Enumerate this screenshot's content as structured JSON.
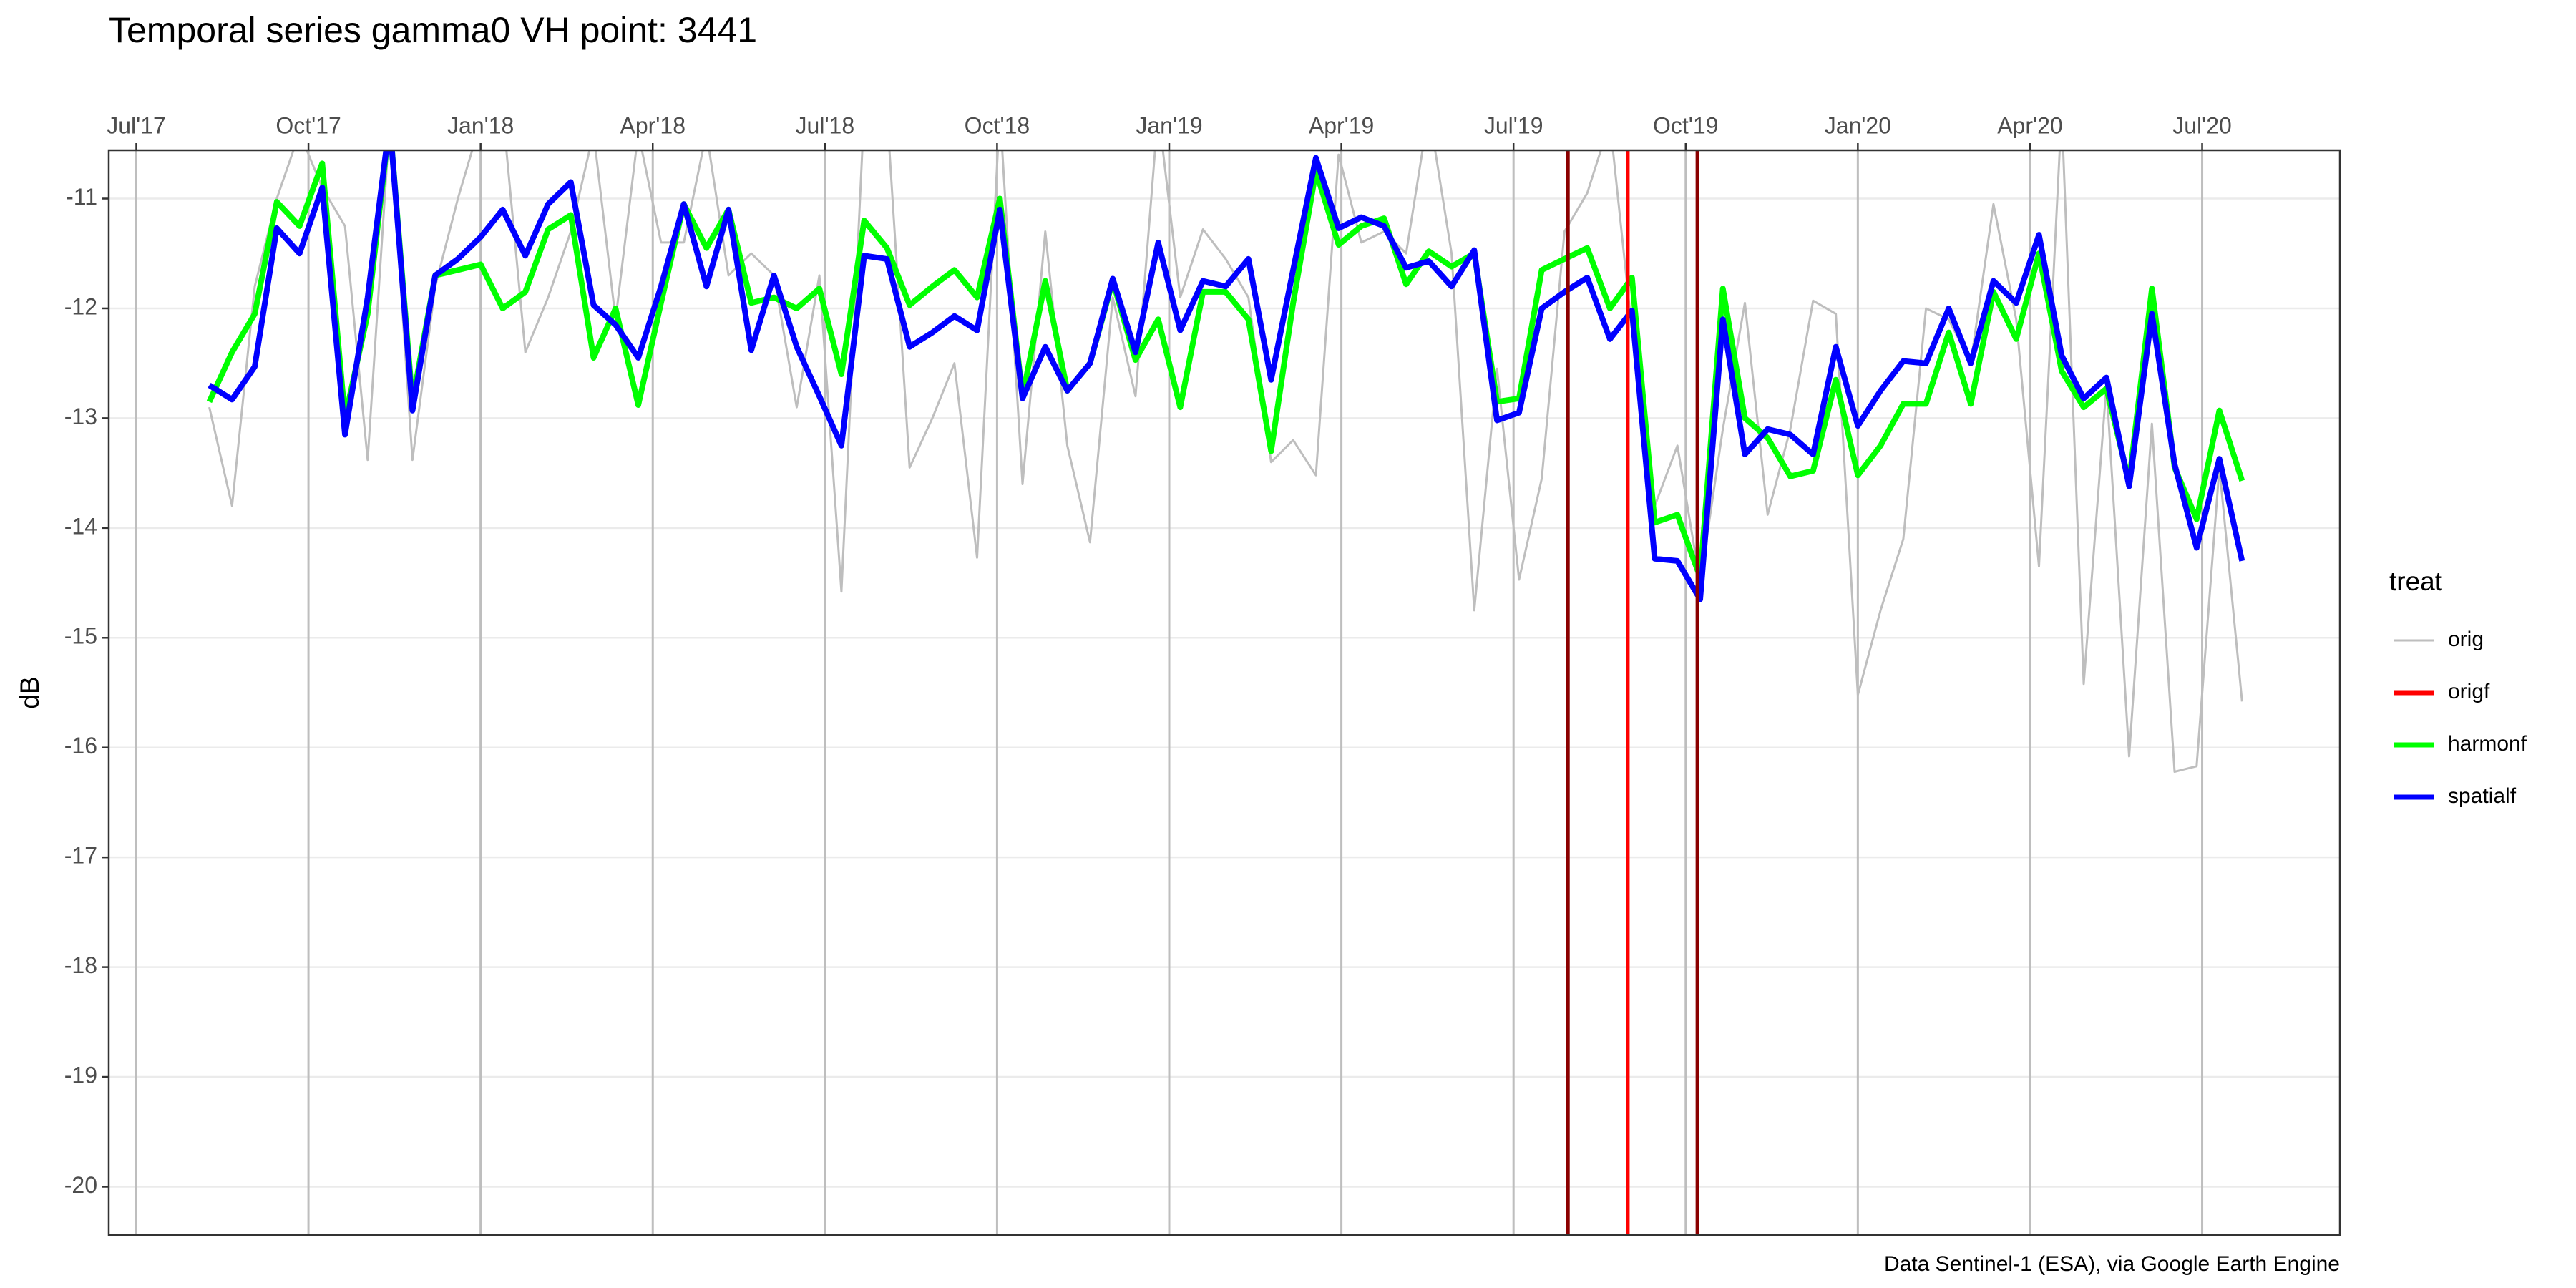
{
  "chart_data": {
    "type": "line",
    "title": "Temporal series gamma0 VH point: 3441",
    "y_label": "dB",
    "caption": "Data Sentinel-1 (ESA), via Google Earth Engine",
    "xlim": [
      2017.46,
      2020.7
    ],
    "xticks": [
      {
        "value": 2017.5,
        "label": "Jul'17"
      },
      {
        "value": 2017.75,
        "label": "Oct'17"
      },
      {
        "value": 2018.0,
        "label": "Jan'18"
      },
      {
        "value": 2018.25,
        "label": "Apr'18"
      },
      {
        "value": 2018.5,
        "label": "Jul'18"
      },
      {
        "value": 2018.75,
        "label": "Oct'18"
      },
      {
        "value": 2019.0,
        "label": "Jan'19"
      },
      {
        "value": 2019.25,
        "label": "Apr'19"
      },
      {
        "value": 2019.5,
        "label": "Jul'19"
      },
      {
        "value": 2019.75,
        "label": "Oct'19"
      },
      {
        "value": 2020.0,
        "label": "Jan'20"
      },
      {
        "value": 2020.25,
        "label": "Apr'20"
      },
      {
        "value": 2020.5,
        "label": "Jul'20"
      }
    ],
    "ylim": [
      -20.44,
      -10.56
    ],
    "yticks": [
      -20,
      -19,
      -18,
      -17,
      -16,
      -15,
      -14,
      -13,
      -12,
      -11
    ],
    "grid": true,
    "legend": {
      "title": "treat",
      "position": "right"
    },
    "x": [
      2017.606,
      2017.639,
      2017.672,
      2017.704,
      2017.737,
      2017.77,
      2017.803,
      2017.836,
      2017.868,
      2017.901,
      2017.934,
      2017.967,
      2018.0,
      2018.032,
      2018.065,
      2018.098,
      2018.131,
      2018.164,
      2018.196,
      2018.229,
      2018.262,
      2018.295,
      2018.328,
      2018.36,
      2018.393,
      2018.426,
      2018.459,
      2018.492,
      2018.524,
      2018.557,
      2018.59,
      2018.623,
      2018.656,
      2018.688,
      2018.721,
      2018.754,
      2018.787,
      2018.82,
      2018.852,
      2018.885,
      2018.918,
      2018.951,
      2018.984,
      2019.016,
      2019.049,
      2019.082,
      2019.115,
      2019.148,
      2019.18,
      2019.213,
      2019.246,
      2019.279,
      2019.312,
      2019.344,
      2019.377,
      2019.41,
      2019.443,
      2019.476,
      2019.508,
      2019.541,
      2019.574,
      2019.607,
      2019.64,
      2019.672,
      2019.705,
      2019.738,
      2019.771,
      2019.804,
      2019.836,
      2019.869,
      2019.902,
      2019.935,
      2019.968,
      2020.0,
      2020.033,
      2020.066,
      2020.099,
      2020.132,
      2020.164,
      2020.197,
      2020.23,
      2020.263,
      2020.296,
      2020.328,
      2020.361,
      2020.394,
      2020.427,
      2020.46,
      2020.492,
      2020.525,
      2020.558
    ],
    "series": [
      {
        "name": "orig",
        "color": "#bebebe",
        "values": [
          -12.9,
          -13.8,
          -11.8,
          -11.0,
          -10.4,
          -10.9,
          -11.25,
          -13.38,
          -10.3,
          -13.38,
          -11.8,
          -11.0,
          -10.3,
          -10.2,
          -12.4,
          -11.9,
          -11.3,
          -10.4,
          -12.1,
          -10.4,
          -11.4,
          -11.4,
          -10.4,
          -11.7,
          -11.5,
          -11.7,
          -12.9,
          -11.7,
          -14.58,
          -10.2,
          -10.2,
          -13.45,
          -13.0,
          -12.5,
          -14.27,
          -10.2,
          -13.6,
          -11.3,
          -13.25,
          -14.13,
          -11.9,
          -12.8,
          -10.2,
          -11.9,
          -11.28,
          -11.55,
          -11.9,
          -13.4,
          -13.2,
          -13.52,
          -10.6,
          -11.4,
          -11.3,
          -11.5,
          -10.2,
          -11.5,
          -14.75,
          -12.55,
          -14.47,
          -13.55,
          -11.3,
          -10.95,
          -10.3,
          -12.2,
          -13.8,
          -13.25,
          -14.5,
          -13.1,
          -11.95,
          -13.88,
          -13.1,
          -11.93,
          -12.05,
          -15.52,
          -14.75,
          -14.1,
          -12.0,
          -12.1,
          -12.5,
          -11.05,
          -12.1,
          -14.35,
          -10.2,
          -15.42,
          -12.7,
          -16.08,
          -13.05,
          -16.22,
          -16.17,
          -13.45,
          -15.58
        ]
      },
      {
        "name": "origf",
        "color": "#ff0000",
        "vline": 2019.666
      },
      {
        "name": "harmonf",
        "color": "#00ff00",
        "values": [
          -12.85,
          -12.4,
          -12.05,
          -11.03,
          -11.25,
          -10.68,
          -13.0,
          -12.05,
          -10.3,
          -12.85,
          -11.7,
          -11.65,
          -11.6,
          -12.0,
          -11.85,
          -11.28,
          -11.15,
          -12.45,
          -12.0,
          -12.88,
          -11.95,
          -11.05,
          -11.45,
          -11.1,
          -11.95,
          -11.9,
          -12.0,
          -11.82,
          -12.6,
          -11.2,
          -11.45,
          -11.97,
          -11.8,
          -11.65,
          -11.9,
          -11.0,
          -12.8,
          -11.75,
          -12.75,
          -12.5,
          -11.75,
          -12.47,
          -12.1,
          -12.9,
          -11.85,
          -11.85,
          -12.1,
          -13.3,
          -11.95,
          -10.75,
          -11.42,
          -11.25,
          -11.18,
          -11.78,
          -11.48,
          -11.62,
          -11.5,
          -12.85,
          -12.82,
          -11.65,
          -11.55,
          -11.45,
          -12.0,
          -11.72,
          -13.95,
          -13.88,
          -14.45,
          -11.82,
          -13.0,
          -13.18,
          -13.53,
          -13.48,
          -12.65,
          -13.52,
          -13.25,
          -12.87,
          -12.87,
          -12.22,
          -12.87,
          -11.85,
          -12.28,
          -11.5,
          -12.57,
          -12.9,
          -12.73,
          -13.58,
          -11.82,
          -13.45,
          -13.92,
          -12.93,
          -13.57
        ]
      },
      {
        "name": "spatialf",
        "color": "#0000ff",
        "values": [
          -12.7,
          -12.83,
          -12.53,
          -11.27,
          -11.5,
          -10.9,
          -13.15,
          -11.9,
          -10.3,
          -12.93,
          -11.7,
          -11.55,
          -11.35,
          -11.1,
          -11.52,
          -11.05,
          -10.85,
          -11.97,
          -12.15,
          -12.45,
          -11.8,
          -11.05,
          -11.8,
          -11.1,
          -12.38,
          -11.7,
          -12.35,
          -12.8,
          -13.25,
          -11.52,
          -11.55,
          -12.35,
          -12.22,
          -12.07,
          -12.2,
          -11.1,
          -12.82,
          -12.35,
          -12.75,
          -12.5,
          -11.73,
          -12.4,
          -11.4,
          -12.2,
          -11.75,
          -11.8,
          -11.55,
          -12.65,
          -11.65,
          -10.63,
          -11.27,
          -11.17,
          -11.25,
          -11.63,
          -11.57,
          -11.8,
          -11.47,
          -13.02,
          -12.95,
          -12.0,
          -11.85,
          -11.72,
          -12.28,
          -12.02,
          -14.28,
          -14.3,
          -14.65,
          -12.1,
          -13.33,
          -13.1,
          -13.15,
          -13.33,
          -12.35,
          -13.07,
          -12.75,
          -12.48,
          -12.5,
          -12.0,
          -12.5,
          -11.75,
          -11.95,
          -11.33,
          -12.43,
          -12.82,
          -12.63,
          -13.62,
          -12.05,
          -13.42,
          -14.18,
          -13.37,
          -14.3
        ]
      }
    ],
    "vlines": [
      {
        "x": 2019.579,
        "color": "#8b0000"
      },
      {
        "x": 2019.767,
        "color": "#8b0000"
      }
    ]
  }
}
